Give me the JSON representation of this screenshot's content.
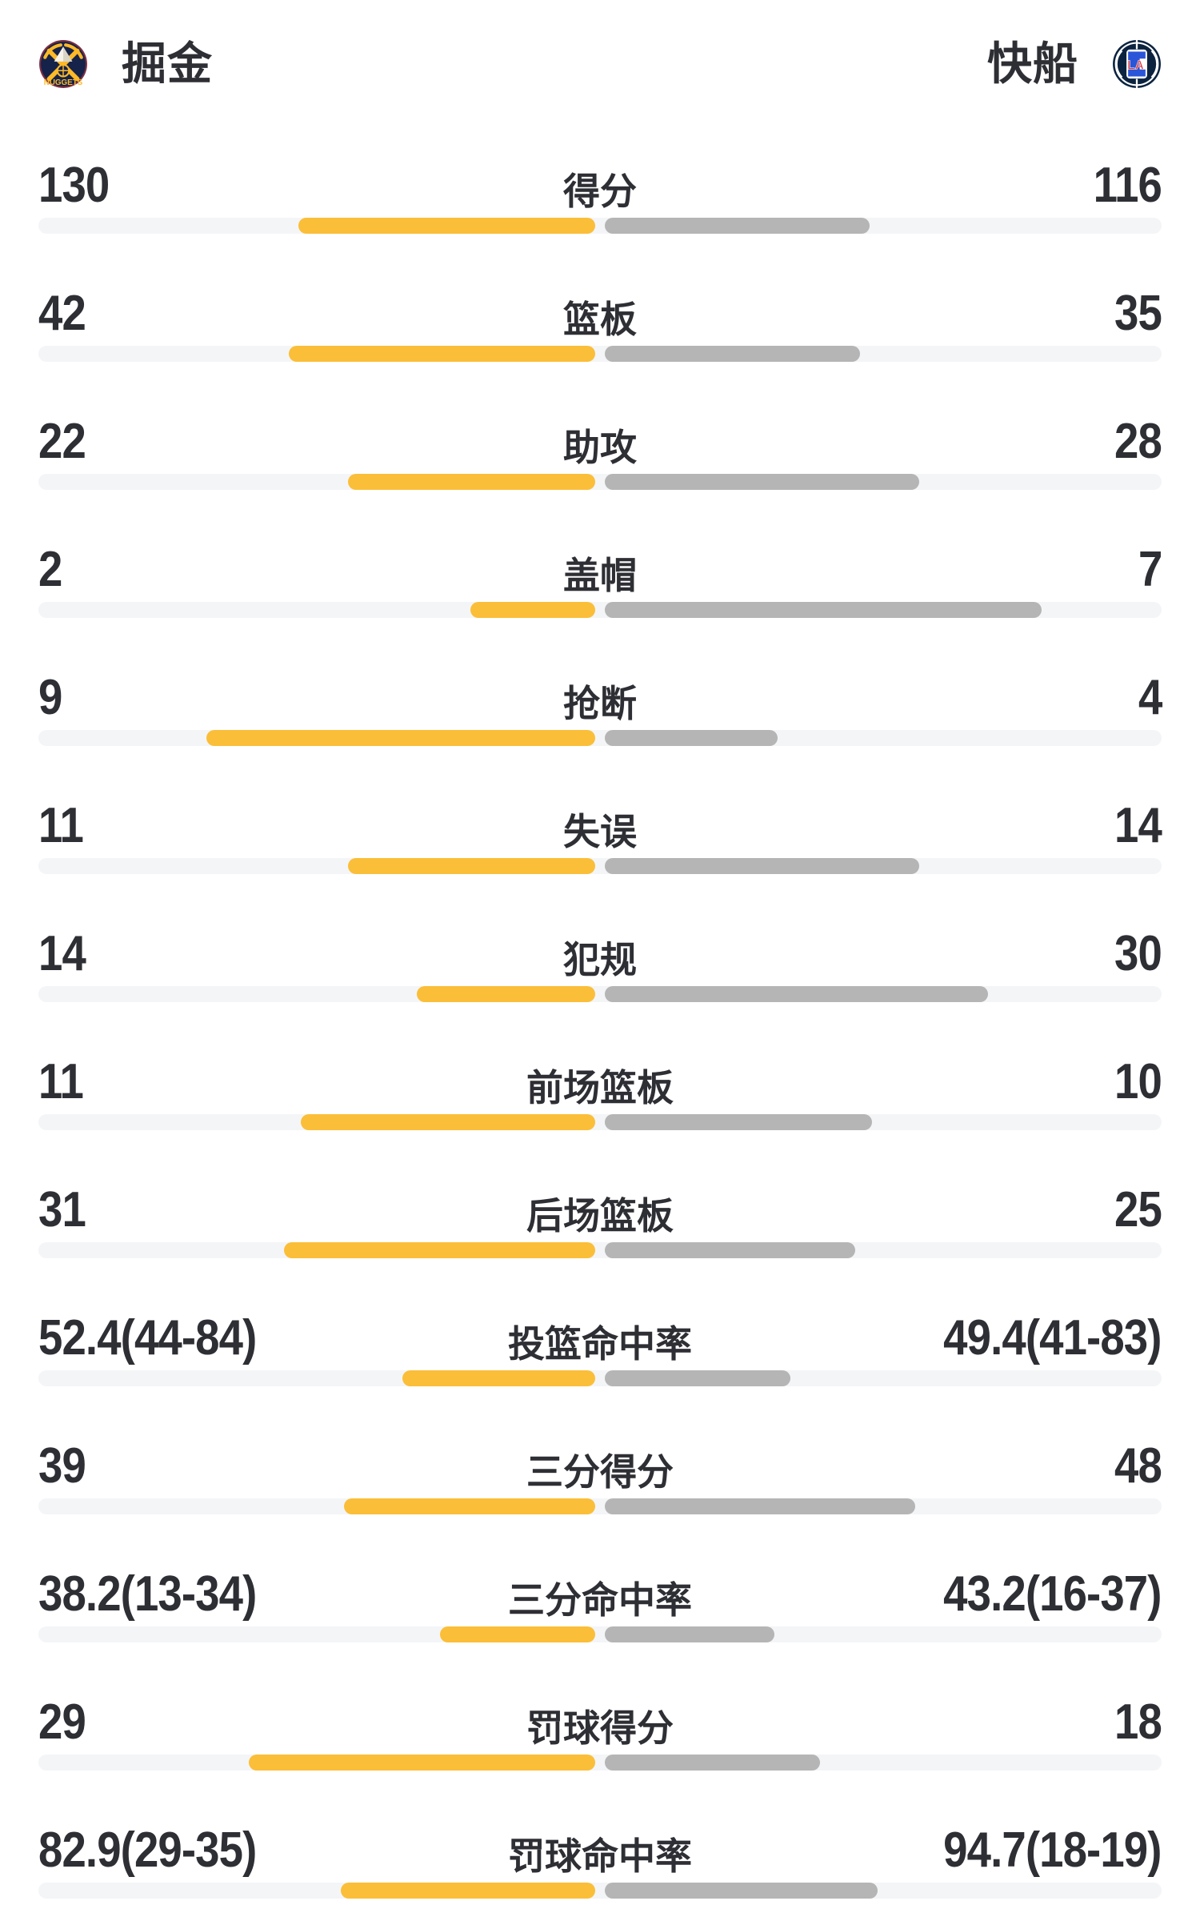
{
  "header": {
    "left_team": {
      "name": "掘金",
      "logo_icon": "nuggets-logo",
      "colors": {
        "navy": "#15224a",
        "gold": "#fdb927",
        "maroon": "#7c2f42",
        "peak_white": "#f6f3ea",
        "peak_shadow": "#d9d4c5"
      }
    },
    "right_team": {
      "name": "快船",
      "logo_icon": "clippers-logo",
      "colors": {
        "navy": "#0c2340",
        "red": "#e03a3e",
        "blue": "#2b55d8",
        "white": "#ffffff"
      }
    }
  },
  "colors": {
    "background": "#ffffff",
    "text": "#2e2f34",
    "left_bar": "#fbbe38",
    "right_bar": "#b5b5b5",
    "track": "#f4f5f7"
  },
  "chart_data": {
    "type": "bar",
    "layout": "paired horizontal bars growing outward from center; left team amber, right team gray",
    "teams": [
      "掘金",
      "快船"
    ],
    "rows": [
      {
        "label": "得分",
        "left": "130",
        "right": "116",
        "left_value": 130,
        "right_value": 116,
        "left_pct": 52.8,
        "right_pct": 47.2
      },
      {
        "label": "篮板",
        "left": "42",
        "right": "35",
        "left_value": 42,
        "right_value": 35,
        "left_pct": 54.5,
        "right_pct": 45.5
      },
      {
        "label": "助攻",
        "left": "22",
        "right": "28",
        "left_value": 22,
        "right_value": 28,
        "left_pct": 44.0,
        "right_pct": 56.0
      },
      {
        "label": "盖帽",
        "left": "2",
        "right": "7",
        "left_value": 2,
        "right_value": 7,
        "left_pct": 22.2,
        "right_pct": 77.8
      },
      {
        "label": "抢断",
        "left": "9",
        "right": "4",
        "left_value": 9,
        "right_value": 4,
        "left_pct": 69.2,
        "right_pct": 30.8
      },
      {
        "label": "失误",
        "left": "11",
        "right": "14",
        "left_value": 11,
        "right_value": 14,
        "left_pct": 44.0,
        "right_pct": 56.0
      },
      {
        "label": "犯规",
        "left": "14",
        "right": "30",
        "left_value": 14,
        "right_value": 30,
        "left_pct": 31.8,
        "right_pct": 68.2
      },
      {
        "label": "前场篮板",
        "left": "11",
        "right": "10",
        "left_value": 11,
        "right_value": 10,
        "left_pct": 52.4,
        "right_pct": 47.6
      },
      {
        "label": "后场篮板",
        "left": "31",
        "right": "25",
        "left_value": 31,
        "right_value": 25,
        "left_pct": 55.4,
        "right_pct": 44.6
      },
      {
        "label": "投篮命中率",
        "left": "52.4(44-84)",
        "right": "49.4(41-83)",
        "left_value": 52.4,
        "right_value": 49.4,
        "left_made": 44,
        "left_att": 84,
        "right_made": 41,
        "right_att": 83,
        "left_pct": 34.4,
        "right_pct": 33.1
      },
      {
        "label": "三分得分",
        "left": "39",
        "right": "48",
        "left_value": 39,
        "right_value": 48,
        "left_pct": 44.8,
        "right_pct": 55.2
      },
      {
        "label": "三分命中率",
        "left": "38.2(13-34)",
        "right": "43.2(16-37)",
        "left_value": 38.2,
        "right_value": 43.2,
        "left_made": 13,
        "left_att": 34,
        "right_made": 16,
        "right_att": 37,
        "left_pct": 27.7,
        "right_pct": 30.2
      },
      {
        "label": "罚球得分",
        "left": "29",
        "right": "18",
        "left_value": 29,
        "right_value": 18,
        "left_pct": 61.7,
        "right_pct": 38.3
      },
      {
        "label": "罚球命中率",
        "left": "82.9(29-35)",
        "right": "94.7(18-19)",
        "left_value": 82.9,
        "right_value": 94.7,
        "left_made": 29,
        "left_att": 35,
        "right_made": 18,
        "right_att": 19,
        "left_pct": 45.3,
        "right_pct": 48.6
      }
    ]
  }
}
